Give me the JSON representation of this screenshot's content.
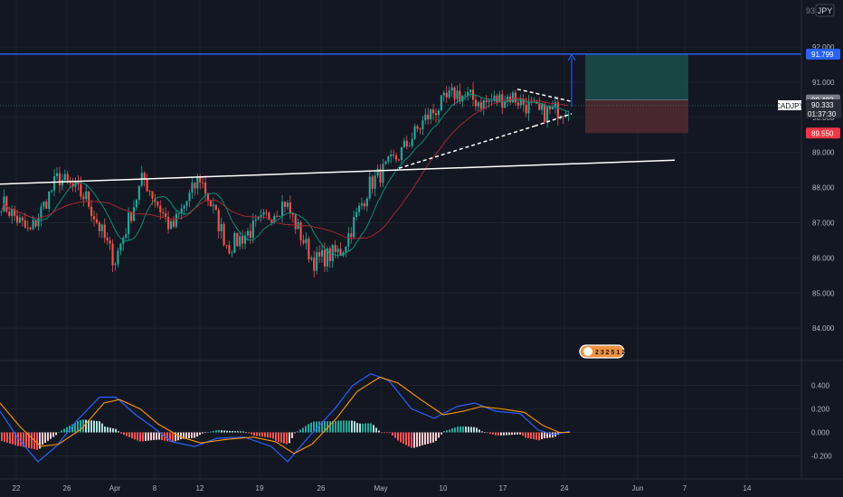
{
  "currency_label": "JPY",
  "price_axis_top_fragment": "93",
  "symbol_tag": {
    "symbol": "CADJPY",
    "price": "90.333",
    "countdown": "01:37:30"
  },
  "colors": {
    "background": "#131722",
    "grid": "#1e222d",
    "axis_text": "#b2b5be",
    "up_candle": "#26a69a",
    "down_candle": "#ef5350",
    "target_line": "#2962ff",
    "trendline": "#ffffff",
    "sma_fast": "#089981",
    "sma_slow": "#b22833",
    "macd_line": "#2962ff",
    "signal_line": "#ff9800",
    "profit_zone": "#1b4d4a",
    "loss_zone": "#4f2a30"
  },
  "chart_data": [
    {
      "type": "candlestick",
      "title": "",
      "symbol": "CADJPY",
      "y_axis": {
        "unit": "JPY",
        "range": [
          83.25,
          93.2
        ],
        "ticks": [
          "92.000",
          "91.000",
          "90.000",
          "89.000",
          "88.000",
          "87.000",
          "86.000",
          "85.000",
          "84.000"
        ]
      },
      "x_axis": {
        "ticks": [
          "22",
          "26",
          "Apr",
          "8",
          "12",
          "19",
          "26",
          "May",
          "10",
          "17",
          "24",
          "Jun",
          "7",
          "14"
        ]
      },
      "price_labels": [
        {
          "value": 91.799,
          "label": "91.799",
          "color": "#2962ff"
        },
        {
          "value": 90.492,
          "label": "90.492",
          "color": "#787b86"
        },
        {
          "value": 90.333,
          "label": "90.333",
          "color": "#787b86"
        },
        {
          "value": 89.55,
          "label": "89.550",
          "color": "#f23645"
        }
      ],
      "series_path": [
        [
          86.8,
          87.6
        ],
        [
          87.9,
          86.7
        ],
        [
          86.5,
          88.3
        ],
        [
          88.3,
          87.7
        ],
        [
          87.6,
          85.9
        ],
        [
          85.5,
          88.3
        ],
        [
          88.4,
          86.8
        ],
        [
          86.6,
          88.3
        ],
        [
          88.3,
          86.3
        ],
        [
          86.4,
          86.9
        ],
        [
          86.4,
          87.6
        ],
        [
          87.6,
          85.9
        ],
        [
          85.5,
          86.2
        ],
        [
          86.2,
          88.1
        ],
        [
          88.1,
          88.9
        ],
        [
          89.0,
          90.0
        ],
        [
          89.9,
          90.7
        ],
        [
          90.7,
          90.4
        ],
        [
          90.3,
          90.6
        ],
        [
          90.4,
          90.1
        ],
        [
          90.3,
          90.3
        ]
      ],
      "candle_count": 215,
      "moving_averages": [
        {
          "name": "",
          "color": "#089981"
        },
        {
          "name": "",
          "color": "#b22833"
        }
      ],
      "annotations": {
        "horizontal_line": 91.799,
        "trendline": {
          "from": [
            0,
            88.1
          ],
          "to": [
            746,
            88.78
          ]
        },
        "triangle": {
          "upper": [
            [
              572,
              90.8
            ],
            [
              632,
              90.45
            ]
          ],
          "lower": [
            [
              591,
              89.75
            ],
            [
              632,
              90.1
            ]
          ],
          "support": [
            [
              441,
              88.55
            ],
            [
              591,
              89.75
            ]
          ]
        },
        "position": {
          "entry": 90.492,
          "target": 91.799,
          "stop": 89.55
        }
      },
      "grid": true,
      "legend": "none"
    },
    {
      "type": "macd",
      "title": "",
      "y_axis": {
        "ticks": [
          "0.400",
          "0.200",
          "0.000",
          "-0.200"
        ],
        "range": [
          -0.42,
          0.62
        ]
      },
      "macd_path": [
        [
          0,
          0.18
        ],
        [
          20,
          -0.05
        ],
        [
          42,
          -0.25
        ],
        [
          62,
          -0.12
        ],
        [
          85,
          0.1
        ],
        [
          110,
          0.3
        ],
        [
          128,
          0.3
        ],
        [
          150,
          0.15
        ],
        [
          168,
          0.05
        ],
        [
          190,
          -0.08
        ],
        [
          215,
          -0.12
        ],
        [
          240,
          -0.05
        ],
        [
          270,
          -0.04
        ],
        [
          300,
          -0.12
        ],
        [
          318,
          -0.25
        ],
        [
          340,
          -0.05
        ],
        [
          370,
          0.2
        ],
        [
          390,
          0.4
        ],
        [
          410,
          0.5
        ],
        [
          430,
          0.44
        ],
        [
          455,
          0.2
        ],
        [
          480,
          0.12
        ],
        [
          505,
          0.22
        ],
        [
          525,
          0.25
        ],
        [
          548,
          0.18
        ],
        [
          575,
          0.16
        ],
        [
          595,
          0.02
        ],
        [
          612,
          -0.02
        ],
        [
          630,
          0.01
        ]
      ],
      "signal_path": [
        [
          0,
          0.25
        ],
        [
          22,
          0.05
        ],
        [
          45,
          -0.12
        ],
        [
          65,
          -0.1
        ],
        [
          90,
          0.03
        ],
        [
          115,
          0.25
        ],
        [
          132,
          0.28
        ],
        [
          155,
          0.2
        ],
        [
          175,
          0.07
        ],
        [
          200,
          -0.04
        ],
        [
          222,
          -0.09
        ],
        [
          250,
          -0.06
        ],
        [
          280,
          -0.04
        ],
        [
          305,
          -0.08
        ],
        [
          325,
          -0.18
        ],
        [
          345,
          -0.1
        ],
        [
          372,
          0.12
        ],
        [
          395,
          0.35
        ],
        [
          420,
          0.47
        ],
        [
          440,
          0.42
        ],
        [
          465,
          0.28
        ],
        [
          490,
          0.15
        ],
        [
          512,
          0.18
        ],
        [
          532,
          0.22
        ],
        [
          555,
          0.2
        ],
        [
          580,
          0.17
        ],
        [
          600,
          0.06
        ],
        [
          618,
          0.0
        ],
        [
          630,
          0.0
        ]
      ]
    }
  ],
  "watermark_badge": {
    "text": "2 3 2 5 1 2"
  }
}
